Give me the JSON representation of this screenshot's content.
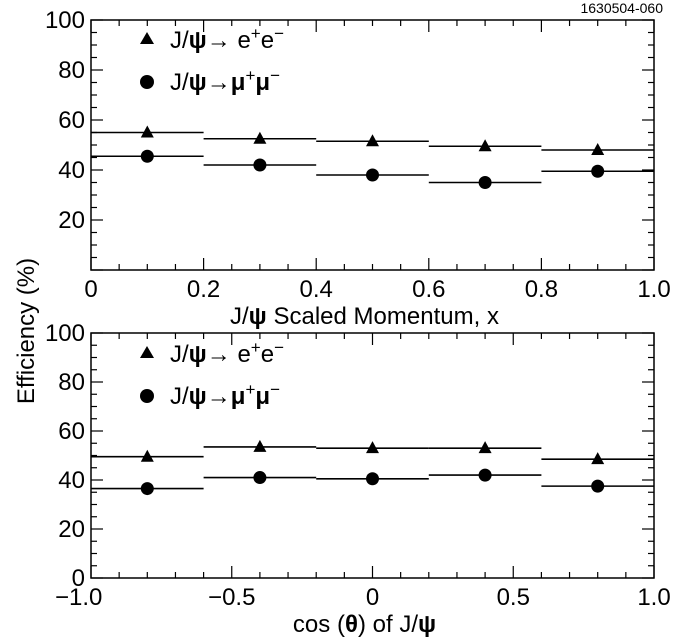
{
  "figure_id": "1630504-060",
  "shared_ylabel": "Efficiency (%)",
  "legend": {
    "ee_label": "J/ψ→ e⁺e⁻",
    "mumu_label": "J/ψ→μ⁺μ⁻"
  },
  "chart_data": [
    {
      "type": "scatter",
      "panel": "top",
      "xlabel": "J/ψ Scaled Momentum, x",
      "ylabel": "Efficiency (%)",
      "xlim": [
        0,
        1.0
      ],
      "ylim": [
        0,
        100
      ],
      "x_ticks": [
        "0",
        "0.2",
        "0.4",
        "0.6",
        "0.8",
        "1.0"
      ],
      "y_ticks": [
        "20",
        "40",
        "60",
        "80",
        "100"
      ],
      "bin_edges": [
        0,
        0.2,
        0.4,
        0.6,
        0.8,
        1.0
      ],
      "series": [
        {
          "name": "J/ψ→ e⁺e⁻",
          "marker": "triangle",
          "x": [
            0.1,
            0.3,
            0.5,
            0.7,
            0.9
          ],
          "values": [
            55,
            52.5,
            51.5,
            49.5,
            48
          ]
        },
        {
          "name": "J/ψ→μ⁺μ⁻",
          "marker": "circle",
          "x": [
            0.1,
            0.3,
            0.5,
            0.7,
            0.9
          ],
          "values": [
            45.5,
            42,
            38,
            35,
            39.5
          ]
        }
      ]
    },
    {
      "type": "scatter",
      "panel": "bottom",
      "xlabel": "cos (θ) of J/ψ",
      "ylabel": "Efficiency (%)",
      "xlim": [
        -1.0,
        1.0
      ],
      "ylim": [
        0,
        100
      ],
      "x_ticks": [
        "−1.0",
        "−0.5",
        "0",
        "0.5",
        "1.0"
      ],
      "y_ticks": [
        "0",
        "20",
        "40",
        "60",
        "80",
        "100"
      ],
      "bin_edges": [
        -1.0,
        -0.6,
        -0.2,
        0.2,
        0.6,
        1.0
      ],
      "series": [
        {
          "name": "J/ψ→ e⁺e⁻",
          "marker": "triangle",
          "x": [
            -0.8,
            -0.4,
            0,
            0.4,
            0.8
          ],
          "values": [
            49.5,
            53.5,
            53,
            53,
            48.5
          ]
        },
        {
          "name": "J/ψ→μ⁺μ⁻",
          "marker": "circle",
          "x": [
            -0.8,
            -0.4,
            0,
            0.4,
            0.8
          ],
          "values": [
            36.5,
            41,
            40.5,
            42,
            37.5
          ]
        }
      ]
    }
  ]
}
